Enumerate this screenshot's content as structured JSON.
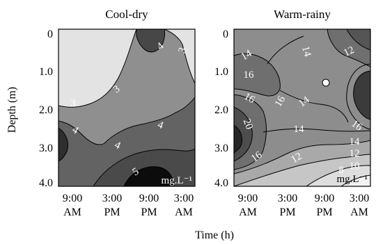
{
  "chart_data": [
    {
      "type": "heatmap",
      "title": "Cool-dry",
      "unit": "mg.L⁻¹",
      "contour_levels": [
        3,
        4,
        5
      ],
      "contour_labels": [
        {
          "text": "3"
        },
        {
          "text": "3"
        },
        {
          "text": "3"
        },
        {
          "text": "4"
        },
        {
          "text": "4"
        },
        {
          "text": "4"
        },
        {
          "text": "4"
        },
        {
          "text": "5"
        }
      ]
    },
    {
      "type": "heatmap",
      "title": "Warm-rainy",
      "unit": "mg.L⁻¹",
      "contour_levels": [
        8,
        10,
        12,
        14,
        16,
        20
      ],
      "contour_labels": [
        {
          "text": "14"
        },
        {
          "text": "14"
        },
        {
          "text": "12"
        },
        {
          "text": "16"
        },
        {
          "text": "16"
        },
        {
          "text": "14"
        },
        {
          "text": "16"
        },
        {
          "text": "20"
        },
        {
          "text": "16"
        },
        {
          "text": "14"
        },
        {
          "text": "16"
        },
        {
          "text": "14"
        },
        {
          "text": "12"
        },
        {
          "text": "12"
        },
        {
          "text": "10"
        },
        {
          "text": "8"
        }
      ]
    }
  ],
  "axes": {
    "ylabel": "Depth (m)",
    "xlabel": "Time (h)",
    "y_ticks": [
      "0",
      "1.0",
      "2.0",
      "3.0",
      "4.0"
    ],
    "x_ticks": [
      {
        "line1": "9:00",
        "line2": "AM"
      },
      {
        "line1": "3:00",
        "line2": "PM"
      },
      {
        "line1": "9:00",
        "line2": "PM"
      },
      {
        "line1": "3:00",
        "line2": "AM"
      }
    ]
  }
}
